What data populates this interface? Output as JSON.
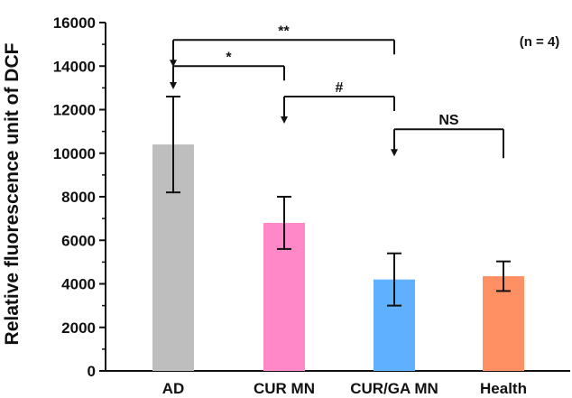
{
  "chart_data": {
    "type": "bar",
    "categories": [
      "AD",
      "CUR MN",
      "CUR/GA MN",
      "Health"
    ],
    "values": [
      10400,
      6800,
      4200,
      4350
    ],
    "errors": [
      2200,
      1200,
      1200,
      680
    ],
    "colors": [
      "#bebebe",
      "#ff88c8",
      "#5fb0ff",
      "#ff9064"
    ],
    "ylabel": "Relative fluorescence unit of DCF",
    "ylim": [
      0,
      16000
    ],
    "yticks": [
      0,
      2000,
      4000,
      6000,
      8000,
      10000,
      12000,
      14000,
      16000
    ],
    "annotation": "(n = 4)",
    "comparisons": [
      {
        "from": 0,
        "to": 2,
        "label": "**",
        "y": 15200
      },
      {
        "from": 0,
        "to": 1,
        "label": "*",
        "y": 14000
      },
      {
        "from": 1,
        "to": 2,
        "label": "#",
        "y": 12600
      },
      {
        "from": 2,
        "to": 3,
        "label": "NS",
        "y": 11100
      }
    ]
  }
}
